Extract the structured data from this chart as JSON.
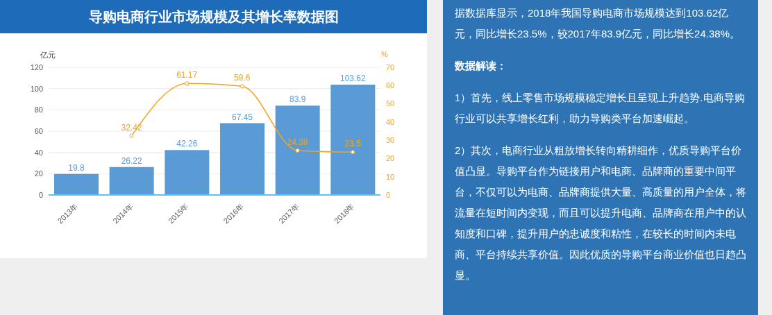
{
  "chart_data": {
    "type": "bar",
    "title": "导购电商行业市场规模及其增长率数据图",
    "ylabel": "亿元",
    "y2label": "%",
    "categories": [
      "2013年",
      "2014年",
      "2015年",
      "2016年",
      "2017年",
      "2018年"
    ],
    "series": [
      {
        "color": "#5b9bd5",
        "values": [
          19.8,
          26.22,
          42.26,
          67.45,
          83.9,
          103.62
        ]
      },
      {
        "type": "line",
        "axis": "y2",
        "color": "#f5a31a",
        "values": [
          null,
          32.42,
          61.17,
          59.6,
          24.38,
          23.5
        ]
      }
    ],
    "ylim": [
      0,
      120
    ],
    "yticks": [
      0,
      20,
      40,
      60,
      80,
      100,
      120
    ],
    "y2lim": [
      0,
      70
    ],
    "y2ticks": [
      0,
      10,
      20,
      30,
      40,
      50,
      60,
      70
    ],
    "grid": "y",
    "marker": "circle",
    "data_labels": true,
    "annotations": [
      "据数据库显示，2018年我国导购电商市场规模达到103.62亿元，同比增长23.5%，较2017年83.9亿元，同比增长24.38%。",
      "数据解读：",
      "1）首先，线上零售市场规模稳定增长且呈现上升趋势.电商导购行业可以共享增长红利，助力导购类平台加速崛起。",
      "2）其次，电商行业从粗放增长转向精耕细作，优质导购平台价值凸显。导购平台作为链接用户和电商、品牌商的重要中间平台，不仅可以为电商、品牌商提供大量、高质量的用户全体，将流量在短时间内变现，而且可以提升电商、品牌商在用户中的认知度和口碑，提升用户的忠诚度和粘性，在较长的时间内未电商、平台持续共享价值。因此优质的导购平台商业价值也日趋凸显。"
    ]
  }
}
